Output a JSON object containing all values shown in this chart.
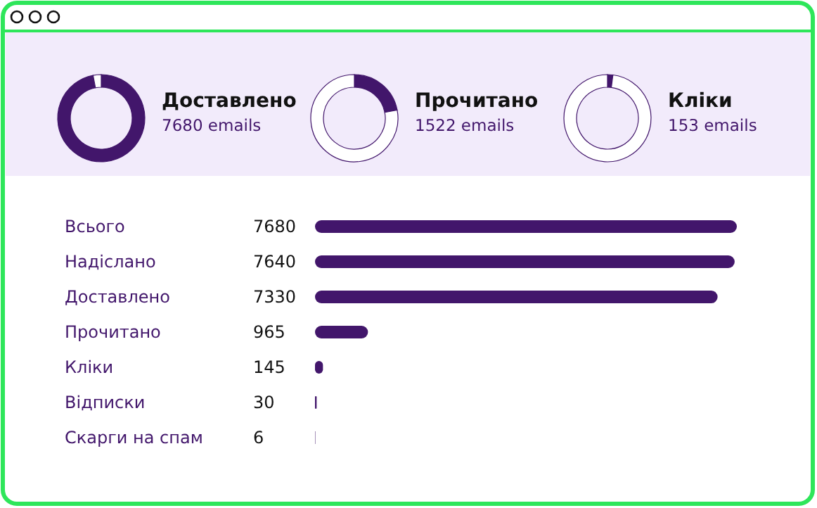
{
  "chart_data": [
    {
      "type": "donut",
      "title": "Доставлено",
      "subtitle": "7680 emails",
      "categories": [
        null,
        null
      ],
      "values": [
        97,
        3
      ],
      "colors": [
        "#42166b",
        "#ffffff"
      ]
    },
    {
      "type": "donut",
      "title": "Прочитано",
      "subtitle": "1522 emails",
      "categories": [
        null,
        null
      ],
      "values": [
        22,
        78
      ],
      "colors": [
        "#42166b",
        "#ffffff"
      ]
    },
    {
      "type": "donut",
      "title": "Кліки",
      "subtitle": "153 emails",
      "categories": [
        null,
        null
      ],
      "values": [
        2,
        98
      ],
      "colors": [
        "#42166b",
        "#ffffff"
      ]
    },
    {
      "type": "bar",
      "orientation": "horizontal",
      "categories": [
        "Всього",
        "Надіслано",
        "Доставлено",
        "Прочитано",
        "Кліки",
        "Відписки",
        "Скарги на спам"
      ],
      "values": [
        7680,
        7640,
        7330,
        965,
        145,
        30,
        6
      ],
      "color": "#42166b",
      "data_labels": true
    }
  ]
}
